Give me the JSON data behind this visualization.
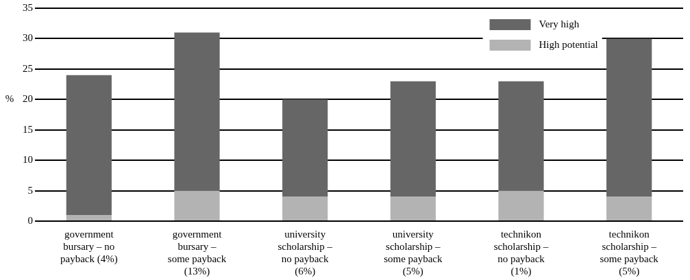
{
  "chart_data": {
    "type": "bar",
    "ylabel": "%",
    "stacked": true,
    "categories": [
      "government\nbursary – no\npayback (4%)",
      "government\nbursary –\nsome payback\n(13%)",
      "university\nscholarship –\nno payback\n(6%)",
      "university\nscholarship –\nsome payback\n(5%)",
      "technikon\nscholarship –\nno payback\n(1%)",
      "technikon\nscholarship –\nsome payback\n(5%)"
    ],
    "series": [
      {
        "name": "High potential",
        "color": "#b3b3b3",
        "values": [
          1,
          5,
          4,
          4,
          5,
          4
        ]
      },
      {
        "name": "Very high",
        "color": "#666666",
        "values": [
          23,
          26,
          16,
          19,
          18,
          26
        ]
      }
    ],
    "ylim": [
      0,
      35
    ],
    "yticks": [
      0,
      5,
      10,
      15,
      20,
      25,
      30,
      35
    ],
    "grid": "y",
    "legend": "top right"
  }
}
